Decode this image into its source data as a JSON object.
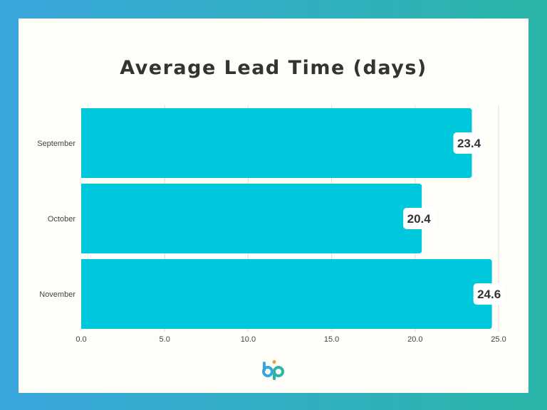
{
  "chart_data": {
    "type": "bar",
    "orientation": "horizontal",
    "title": "Average Lead Time (days)",
    "categories": [
      "September",
      "October",
      "November"
    ],
    "values": [
      23.4,
      20.4,
      24.6
    ],
    "value_labels": [
      "23.4",
      "20.4",
      "24.6"
    ],
    "xlim": [
      0,
      25
    ],
    "xticks": [
      "0.0",
      "5.0",
      "10.0",
      "15.0",
      "20.0",
      "25.0"
    ],
    "xlabel": "",
    "ylabel": "",
    "grid": true,
    "legend": "none",
    "colors": {
      "bar": "#00c8dc",
      "grid": "#dddddd",
      "label_bg": "#ffffff",
      "text": "#333333"
    }
  },
  "branding": {
    "logo_icon": "bp-logo-icon",
    "colors": {
      "b": "#39a6dd",
      "p": "#2bb5a8",
      "dot": "#f0a030"
    }
  }
}
